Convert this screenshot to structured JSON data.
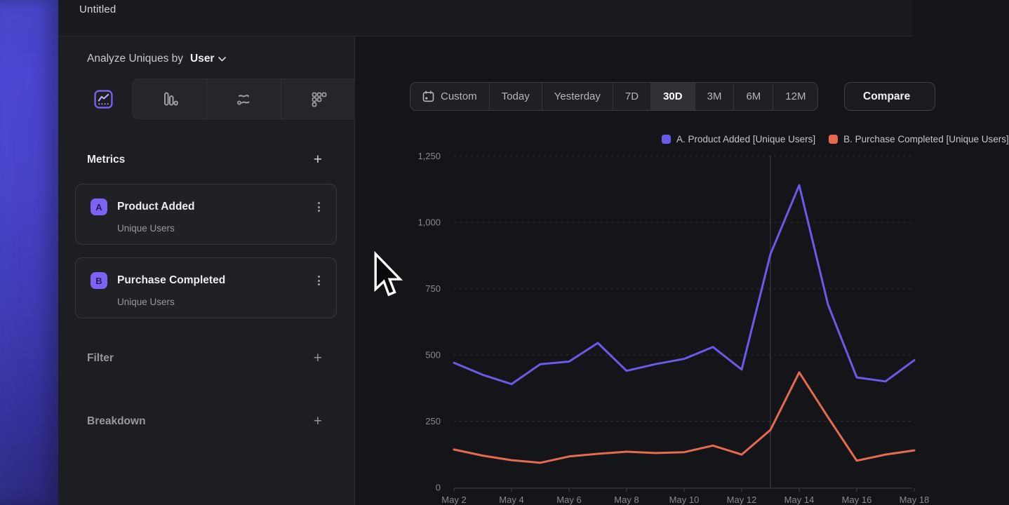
{
  "window": {
    "title": "Untitled"
  },
  "sidebar": {
    "analyze_label": "Analyze Uniques by",
    "analyze_value": "User",
    "chart_type_tabs": [
      {
        "name": "line-chart",
        "selected": true
      },
      {
        "name": "bar-funnel",
        "selected": false
      },
      {
        "name": "flows",
        "selected": false
      },
      {
        "name": "retention-grid",
        "selected": false
      }
    ],
    "metrics": {
      "label": "Metrics",
      "add_label": "+",
      "items": [
        {
          "badge": "A",
          "name": "Product Added",
          "measure": "Unique Users"
        },
        {
          "badge": "B",
          "name": "Purchase Completed",
          "measure": "Unique Users"
        }
      ]
    },
    "filter": {
      "label": "Filter",
      "add_label": "+"
    },
    "breakdown": {
      "label": "Breakdown",
      "add_label": "+"
    }
  },
  "toolbar": {
    "ranges": [
      "Custom",
      "Today",
      "Yesterday",
      "7D",
      "30D",
      "3M",
      "6M",
      "12M"
    ],
    "selected_range": "30D",
    "compare_label": "Compare"
  },
  "chart_data": {
    "type": "line",
    "title": "",
    "xlabel": "",
    "ylabel": "",
    "x": [
      "May 2",
      "May 3",
      "May 4",
      "May 5",
      "May 6",
      "May 7",
      "May 8",
      "May 9",
      "May 10",
      "May 11",
      "May 12",
      "May 13",
      "May 14",
      "May 15",
      "May 16",
      "May 17",
      "May 18"
    ],
    "x_tick_labels": [
      "May 2",
      "May 4",
      "May 6",
      "May 8",
      "May 10",
      "May 12",
      "May 14",
      "May 16",
      "May 18"
    ],
    "series": [
      {
        "name": "A. Product Added [Unique Users]",
        "color": "#6a5ae9",
        "values": [
          470,
          425,
          390,
          465,
          475,
          545,
          440,
          465,
          485,
          530,
          445,
          880,
          1140,
          690,
          415,
          400,
          480
        ]
      },
      {
        "name": "B. Purchase Completed [Unique Users]",
        "color": "#e66a4e",
        "values": [
          143,
          120,
          103,
          93,
          117,
          127,
          135,
          130,
          133,
          158,
          124,
          217,
          434,
          265,
          101,
          124,
          140
        ]
      }
    ],
    "ylim": [
      0,
      1250
    ],
    "yticks": [
      0,
      250,
      500,
      750,
      1000,
      1250
    ],
    "grid": "horizontal-dashed",
    "annotation_vline_x": "May 13",
    "legend_position": "top-right"
  },
  "colors": {
    "series_a": "#6a5ae9",
    "series_b": "#e66a4e",
    "accent": "#7e62f4"
  }
}
